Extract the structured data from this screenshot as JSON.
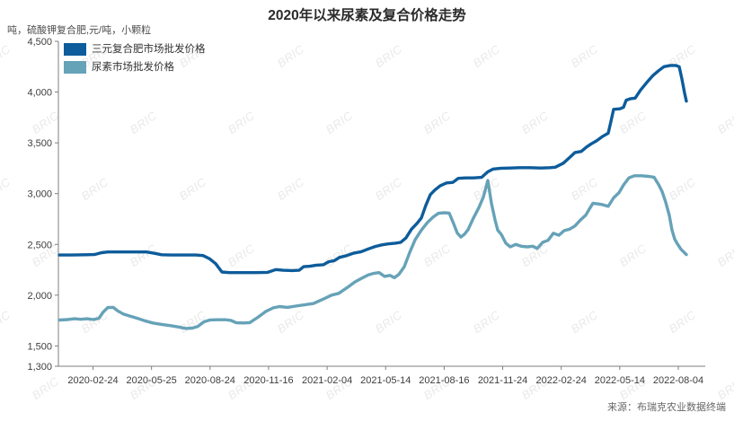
{
  "title": "2020年以来尿素及复合价格走势",
  "subtitle": "吨，硫酸钾复合肥,元/吨，小颗粒",
  "source": "来源：布瑞克农业数据终端",
  "watermark": "BRIC",
  "colors": {
    "series1": "#0d5c9b",
    "series2": "#66a2b8",
    "axis": "#7f7f7f",
    "tick_text": "#3d3d3d",
    "title_text": "#2b2b2b",
    "watermark_text": "#cfcfcf"
  },
  "chart_data": {
    "type": "line",
    "title": "2020年以来尿素及复合价格走势",
    "unit_note": "吨，硫酸钾复合肥,元/吨，小颗粒",
    "ylim": [
      1300,
      4500
    ],
    "yticks": [
      1300,
      1500,
      2000,
      2500,
      3000,
      3500,
      4000,
      4500
    ],
    "ytick_labels": [
      "1,300",
      "1,500",
      "2,000",
      "2,500",
      "3,000",
      "3,500",
      "4,000",
      "4,500"
    ],
    "xtick_labels": [
      "2020-02-24",
      "2020-05-25",
      "2020-08-24",
      "2020-11-16",
      "2021-02-04",
      "2021-05-14",
      "2021-08-16",
      "2021-11-24",
      "2022-02-24",
      "2022-05-14",
      "2022-08-04"
    ],
    "grid": false,
    "legend_position": "top-left",
    "series": [
      {
        "name": "三元复合肥市场批发价格",
        "color": "#0d5c9b",
        "points": [
          [
            66,
            2395
          ],
          [
            80,
            2395
          ],
          [
            95,
            2398
          ],
          [
            105,
            2400
          ],
          [
            113,
            2418
          ],
          [
            120,
            2425
          ],
          [
            135,
            2425
          ],
          [
            150,
            2425
          ],
          [
            163,
            2425
          ],
          [
            172,
            2412
          ],
          [
            180,
            2398
          ],
          [
            190,
            2395
          ],
          [
            205,
            2395
          ],
          [
            218,
            2395
          ],
          [
            226,
            2390
          ],
          [
            233,
            2360
          ],
          [
            240,
            2310
          ],
          [
            247,
            2228
          ],
          [
            255,
            2222
          ],
          [
            270,
            2222
          ],
          [
            285,
            2222
          ],
          [
            298,
            2225
          ],
          [
            307,
            2252
          ],
          [
            315,
            2245
          ],
          [
            325,
            2242
          ],
          [
            333,
            2245
          ],
          [
            338,
            2280
          ],
          [
            345,
            2285
          ],
          [
            352,
            2295
          ],
          [
            360,
            2300
          ],
          [
            366,
            2330
          ],
          [
            372,
            2340
          ],
          [
            378,
            2372
          ],
          [
            386,
            2390
          ],
          [
            394,
            2415
          ],
          [
            402,
            2428
          ],
          [
            410,
            2455
          ],
          [
            418,
            2480
          ],
          [
            425,
            2495
          ],
          [
            432,
            2505
          ],
          [
            440,
            2512
          ],
          [
            446,
            2520
          ],
          [
            452,
            2565
          ],
          [
            458,
            2650
          ],
          [
            464,
            2705
          ],
          [
            469,
            2760
          ],
          [
            474,
            2885
          ],
          [
            479,
            2990
          ],
          [
            484,
            3035
          ],
          [
            490,
            3078
          ],
          [
            497,
            3105
          ],
          [
            504,
            3110
          ],
          [
            510,
            3150
          ],
          [
            518,
            3155
          ],
          [
            527,
            3155
          ],
          [
            536,
            3160
          ],
          [
            543,
            3215
          ],
          [
            549,
            3242
          ],
          [
            558,
            3250
          ],
          [
            568,
            3252
          ],
          [
            578,
            3255
          ],
          [
            590,
            3255
          ],
          [
            602,
            3252
          ],
          [
            612,
            3255
          ],
          [
            618,
            3260
          ],
          [
            627,
            3300
          ],
          [
            634,
            3355
          ],
          [
            640,
            3405
          ],
          [
            647,
            3415
          ],
          [
            653,
            3460
          ],
          [
            658,
            3490
          ],
          [
            664,
            3520
          ],
          [
            671,
            3565
          ],
          [
            677,
            3595
          ],
          [
            680,
            3710
          ],
          [
            683,
            3830
          ],
          [
            690,
            3835
          ],
          [
            694,
            3850
          ],
          [
            697,
            3920
          ],
          [
            702,
            3935
          ],
          [
            707,
            3940
          ],
          [
            713,
            4020
          ],
          [
            720,
            4095
          ],
          [
            727,
            4165
          ],
          [
            733,
            4210
          ],
          [
            739,
            4250
          ],
          [
            746,
            4262
          ],
          [
            752,
            4262
          ],
          [
            756,
            4250
          ],
          [
            759,
            4130
          ],
          [
            762,
            3990
          ],
          [
            764,
            3910
          ]
        ]
      },
      {
        "name": "尿素市场批发价格",
        "color": "#66a2b8",
        "points": [
          [
            66,
            1755
          ],
          [
            75,
            1760
          ],
          [
            83,
            1768
          ],
          [
            90,
            1762
          ],
          [
            97,
            1768
          ],
          [
            104,
            1760
          ],
          [
            110,
            1772
          ],
          [
            115,
            1835
          ],
          [
            120,
            1878
          ],
          [
            126,
            1880
          ],
          [
            131,
            1845
          ],
          [
            137,
            1815
          ],
          [
            145,
            1792
          ],
          [
            153,
            1772
          ],
          [
            161,
            1748
          ],
          [
            170,
            1726
          ],
          [
            180,
            1712
          ],
          [
            190,
            1700
          ],
          [
            199,
            1686
          ],
          [
            207,
            1672
          ],
          [
            214,
            1676
          ],
          [
            220,
            1692
          ],
          [
            227,
            1738
          ],
          [
            234,
            1756
          ],
          [
            242,
            1758
          ],
          [
            251,
            1758
          ],
          [
            257,
            1752
          ],
          [
            263,
            1728
          ],
          [
            271,
            1726
          ],
          [
            278,
            1730
          ],
          [
            287,
            1782
          ],
          [
            296,
            1840
          ],
          [
            304,
            1875
          ],
          [
            311,
            1888
          ],
          [
            320,
            1880
          ],
          [
            329,
            1892
          ],
          [
            339,
            1905
          ],
          [
            349,
            1918
          ],
          [
            359,
            1958
          ],
          [
            369,
            2000
          ],
          [
            377,
            2018
          ],
          [
            386,
            2072
          ],
          [
            395,
            2130
          ],
          [
            403,
            2168
          ],
          [
            410,
            2200
          ],
          [
            416,
            2215
          ],
          [
            422,
            2222
          ],
          [
            428,
            2185
          ],
          [
            434,
            2195
          ],
          [
            439,
            2172
          ],
          [
            444,
            2205
          ],
          [
            450,
            2280
          ],
          [
            456,
            2420
          ],
          [
            462,
            2545
          ],
          [
            469,
            2640
          ],
          [
            476,
            2718
          ],
          [
            482,
            2768
          ],
          [
            488,
            2806
          ],
          [
            495,
            2812
          ],
          [
            500,
            2808
          ],
          [
            505,
            2702
          ],
          [
            509,
            2612
          ],
          [
            513,
            2572
          ],
          [
            517,
            2600
          ],
          [
            521,
            2645
          ],
          [
            527,
            2760
          ],
          [
            533,
            2862
          ],
          [
            538,
            2965
          ],
          [
            543,
            3130
          ],
          [
            547,
            2905
          ],
          [
            551,
            2742
          ],
          [
            554,
            2640
          ],
          [
            558,
            2598
          ],
          [
            563,
            2512
          ],
          [
            568,
            2476
          ],
          [
            574,
            2500
          ],
          [
            580,
            2482
          ],
          [
            587,
            2476
          ],
          [
            593,
            2482
          ],
          [
            598,
            2460
          ],
          [
            604,
            2520
          ],
          [
            610,
            2540
          ],
          [
            616,
            2610
          ],
          [
            622,
            2590
          ],
          [
            628,
            2636
          ],
          [
            634,
            2650
          ],
          [
            640,
            2682
          ],
          [
            646,
            2740
          ],
          [
            652,
            2788
          ],
          [
            656,
            2848
          ],
          [
            660,
            2905
          ],
          [
            666,
            2898
          ],
          [
            671,
            2890
          ],
          [
            677,
            2874
          ],
          [
            683,
            2958
          ],
          [
            689,
            3010
          ],
          [
            694,
            3085
          ],
          [
            700,
            3155
          ],
          [
            706,
            3176
          ],
          [
            714,
            3176
          ],
          [
            722,
            3170
          ],
          [
            728,
            3162
          ],
          [
            733,
            3090
          ],
          [
            737,
            3020
          ],
          [
            741,
            2915
          ],
          [
            745,
            2785
          ],
          [
            748,
            2640
          ],
          [
            751,
            2552
          ],
          [
            754,
            2505
          ],
          [
            758,
            2452
          ],
          [
            761,
            2425
          ],
          [
            764,
            2400
          ]
        ]
      }
    ]
  },
  "legend": {
    "items": [
      {
        "label": "三元复合肥市场批发价格",
        "color": "#0d5c9b"
      },
      {
        "label": "尿素市场批发价格",
        "color": "#66a2b8"
      }
    ]
  }
}
